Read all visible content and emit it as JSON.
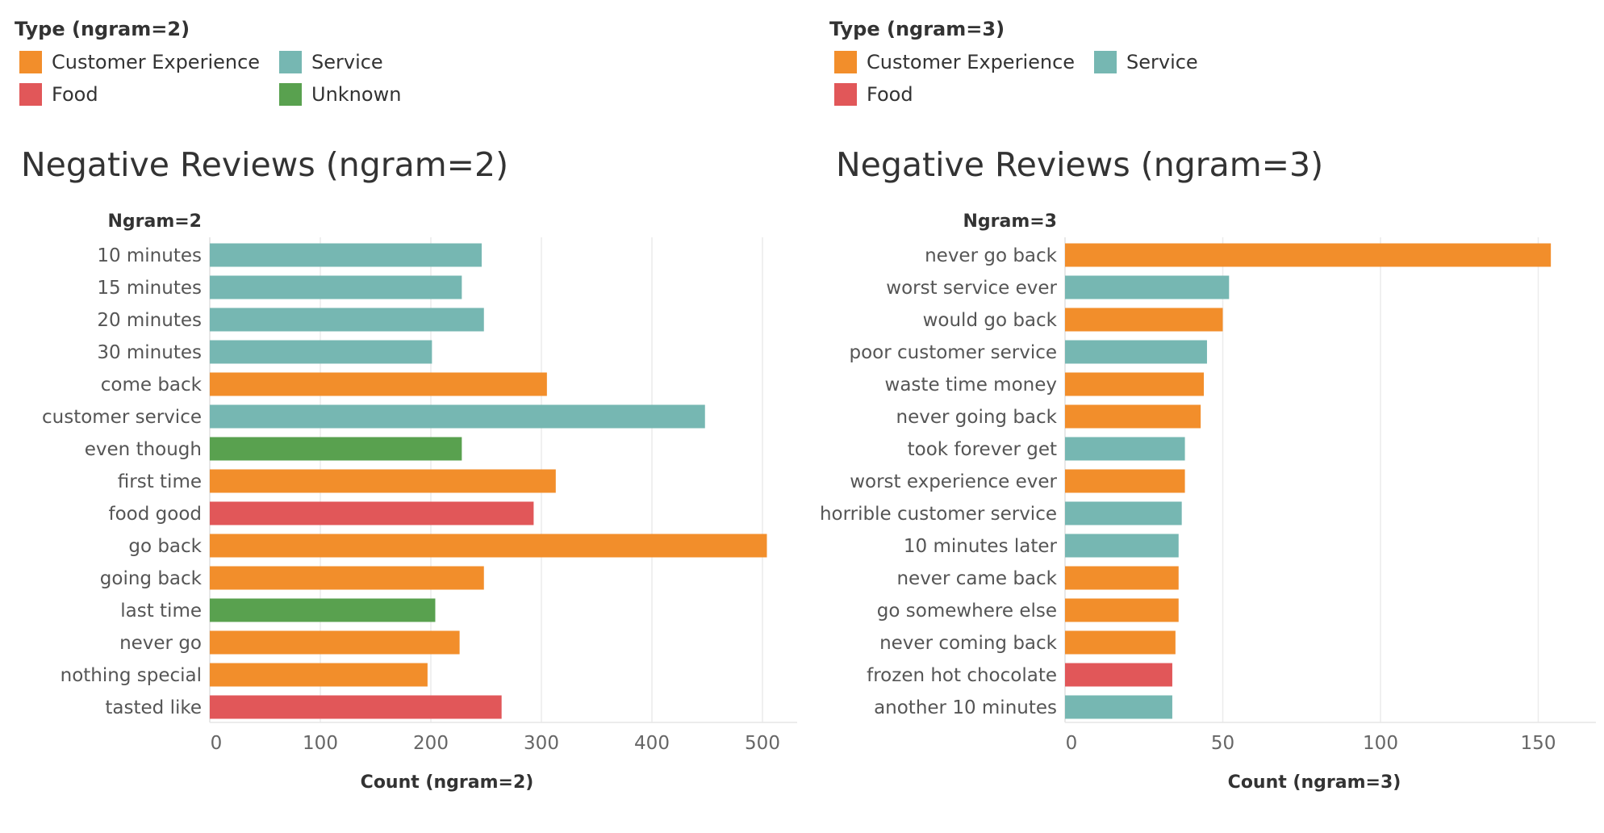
{
  "colors": {
    "customer_experience": "#F28E2B",
    "service": "#76B7B2",
    "food": "#E15759",
    "unknown": "#59A14F"
  },
  "chart_data": [
    {
      "type": "bar",
      "orientation": "horizontal",
      "title": "Negative Reviews (ngram=2)",
      "legend_title": "Type (ngram=2)",
      "legend": [
        {
          "label": "Customer Experience",
          "color": "#F28E2B"
        },
        {
          "label": "Service",
          "color": "#76B7B2"
        },
        {
          "label": "Food",
          "color": "#E15759"
        },
        {
          "label": "Unknown",
          "color": "#59A14F"
        }
      ],
      "ylabel": "Ngram=2",
      "xlabel": "Count (ngram=2)",
      "xlim": [
        0,
        530
      ],
      "xticks": [
        0,
        100,
        200,
        300,
        400,
        500
      ],
      "grid": true,
      "categories": [
        "10 minutes",
        "15 minutes",
        "20 minutes",
        "30 minutes",
        "come back",
        "customer service",
        "even though",
        "first time",
        "food good",
        "go back",
        "going back",
        "last time",
        "never go",
        "nothing special",
        "tasted like"
      ],
      "values": [
        246,
        228,
        248,
        201,
        305,
        448,
        228,
        313,
        293,
        504,
        248,
        204,
        226,
        197,
        264
      ],
      "types": [
        "Service",
        "Service",
        "Service",
        "Service",
        "Customer Experience",
        "Service",
        "Unknown",
        "Customer Experience",
        "Food",
        "Customer Experience",
        "Customer Experience",
        "Unknown",
        "Customer Experience",
        "Customer Experience",
        "Food"
      ]
    },
    {
      "type": "bar",
      "orientation": "horizontal",
      "title": "Negative Reviews (ngram=3)",
      "legend_title": "Type (ngram=3)",
      "legend": [
        {
          "label": "Customer Experience",
          "color": "#F28E2B"
        },
        {
          "label": "Service",
          "color": "#76B7B2"
        },
        {
          "label": "Food",
          "color": "#E15759"
        }
      ],
      "ylabel": "Ngram=3",
      "xlabel": "Count (ngram=3)",
      "xlim": [
        0,
        160
      ],
      "xticks": [
        0,
        50,
        100,
        150
      ],
      "grid": true,
      "categories": [
        "never go back",
        "worst service ever",
        "would go back",
        "poor customer service",
        "waste time money",
        "never going back",
        "took forever get",
        "worst experience ever",
        "horrible customer service",
        "10 minutes later",
        "never came back",
        "go somewhere else",
        "never coming back",
        "frozen hot chocolate",
        "another 10 minutes"
      ],
      "values": [
        154,
        52,
        50,
        45,
        44,
        43,
        38,
        38,
        37,
        36,
        36,
        36,
        35,
        34,
        34
      ],
      "types": [
        "Customer Experience",
        "Service",
        "Customer Experience",
        "Service",
        "Customer Experience",
        "Customer Experience",
        "Service",
        "Customer Experience",
        "Service",
        "Service",
        "Customer Experience",
        "Customer Experience",
        "Customer Experience",
        "Food",
        "Service"
      ]
    }
  ]
}
